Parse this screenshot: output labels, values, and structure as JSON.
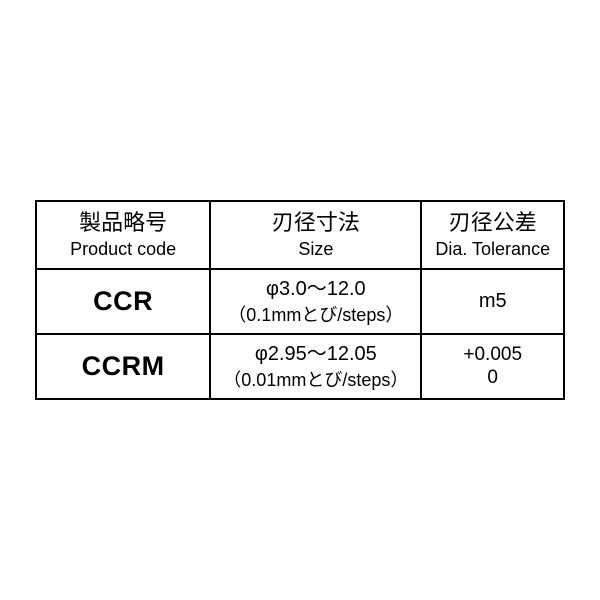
{
  "table": {
    "type": "table",
    "border_color": "#000000",
    "border_width": 2,
    "background_color": "#ffffff",
    "column_widths_pct": [
      33,
      40,
      27
    ],
    "header": {
      "jp_fontsize": 22,
      "en_fontsize": 18,
      "cells": [
        {
          "jp": "製品略号",
          "en": "Product code"
        },
        {
          "jp": "刃径寸法",
          "en": "Size"
        },
        {
          "jp": "刃径公差",
          "en": "Dia. Tolerance"
        }
      ]
    },
    "rows": [
      {
        "code": "CCR",
        "size_main": "φ3.0～12.0",
        "size_sub": "（0.1mmとび/steps）",
        "tolerance_lines": [
          "m5"
        ]
      },
      {
        "code": "CCRM",
        "size_main": "φ2.95～12.05",
        "size_sub": "（0.01mmとび/steps）",
        "tolerance_lines": [
          "+0.005",
          "0"
        ]
      }
    ],
    "code_fontsize": 27,
    "code_fontweight": 900,
    "size_main_fontsize": 20,
    "size_sub_fontsize": 18,
    "tol_fontsize": 20
  }
}
